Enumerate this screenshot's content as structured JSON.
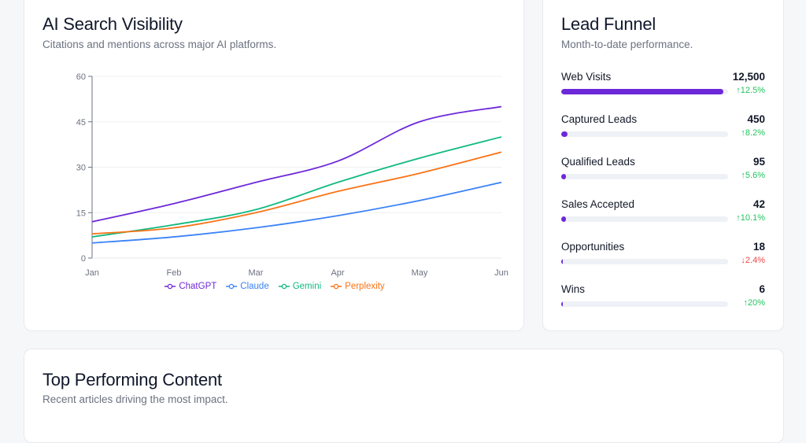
{
  "visibility": {
    "title": "AI Search Visibility",
    "subtitle": "Citations and mentions across major AI platforms."
  },
  "funnel": {
    "title": "Lead Funnel",
    "subtitle": "Month-to-date performance.",
    "accent_color": "#6d28d9",
    "items": [
      {
        "label": "Web Visits",
        "value": "12,500",
        "change": "12.5%",
        "direction": "up",
        "fill_fraction": 0.97
      },
      {
        "label": "Captured Leads",
        "value": "450",
        "change": "8.2%",
        "direction": "up",
        "fill_fraction": 0.036
      },
      {
        "label": "Qualified Leads",
        "value": "95",
        "change": "5.6%",
        "direction": "up",
        "fill_fraction": 0.008
      },
      {
        "label": "Sales Accepted",
        "value": "42",
        "change": "10.1%",
        "direction": "up",
        "fill_fraction": 0.0034
      },
      {
        "label": "Opportunities",
        "value": "18",
        "change": "2.4%",
        "direction": "down",
        "fill_fraction": 0.0014
      },
      {
        "label": "Wins",
        "value": "6",
        "change": "20%",
        "direction": "up",
        "fill_fraction": 0.0005
      }
    ]
  },
  "content": {
    "title": "Top Performing Content",
    "subtitle": "Recent articles driving the most impact."
  },
  "chart_data": {
    "type": "line",
    "title": "AI Search Visibility",
    "categories": [
      "Jan",
      "Feb",
      "Mar",
      "Apr",
      "May",
      "Jun"
    ],
    "ylim": [
      0,
      60
    ],
    "yticks": [
      0,
      15,
      30,
      45,
      60
    ],
    "grid": true,
    "legend": "bottom",
    "series": [
      {
        "name": "ChatGPT",
        "color": "#6d28d9",
        "values": [
          12,
          18,
          25,
          32,
          45,
          50
        ]
      },
      {
        "name": "Claude",
        "color": "#3b82f6",
        "values": [
          5,
          7,
          10,
          14,
          19,
          25
        ]
      },
      {
        "name": "Gemini",
        "color": "#10b981",
        "values": [
          7,
          11,
          16,
          25,
          33,
          40
        ]
      },
      {
        "name": "Perplexity",
        "color": "#f97316",
        "values": [
          8,
          10,
          15,
          22,
          28,
          35
        ]
      }
    ]
  }
}
